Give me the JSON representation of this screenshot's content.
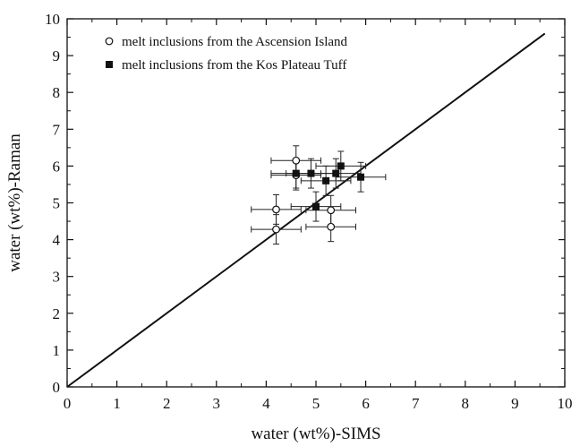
{
  "chart_data": {
    "type": "scatter",
    "title": "",
    "xlabel": "water (wt%)-SIMS",
    "ylabel": "water (wt%)-Raman",
    "xlim": [
      0,
      10
    ],
    "ylim": [
      0,
      10
    ],
    "xticks": [
      "0",
      "1",
      "2",
      "3",
      "4",
      "5",
      "6",
      "7",
      "8",
      "9",
      "10"
    ],
    "yticks": [
      "0",
      "1",
      "2",
      "3",
      "4",
      "5",
      "6",
      "7",
      "8",
      "9",
      "10"
    ],
    "grid": false,
    "legend_position": "top-left",
    "reference_line": {
      "x": [
        0,
        9.6
      ],
      "y": [
        0,
        9.6
      ]
    },
    "series": [
      {
        "name": "melt inclusions from the Ascension Island",
        "marker": "open-circle",
        "points": [
          {
            "x": 4.6,
            "y": 6.15,
            "xerr": 0.5,
            "yerr": 0.4
          },
          {
            "x": 4.6,
            "y": 5.75,
            "xerr": 0.5,
            "yerr": 0.4
          },
          {
            "x": 4.2,
            "y": 4.82,
            "xerr": 0.5,
            "yerr": 0.4
          },
          {
            "x": 4.2,
            "y": 4.28,
            "xerr": 0.5,
            "yerr": 0.4
          },
          {
            "x": 5.3,
            "y": 4.8,
            "xerr": 0.5,
            "yerr": 0.4
          },
          {
            "x": 5.3,
            "y": 4.35,
            "xerr": 0.5,
            "yerr": 0.4
          }
        ]
      },
      {
        "name": "melt inclusions from the Kos Plateau Tuff",
        "marker": "filled-square",
        "points": [
          {
            "x": 4.6,
            "y": 5.8,
            "xerr": 0.5,
            "yerr": 0.4
          },
          {
            "x": 4.9,
            "y": 5.8,
            "xerr": 0.5,
            "yerr": 0.4
          },
          {
            "x": 5.2,
            "y": 5.6,
            "xerr": 0.5,
            "yerr": 0.4
          },
          {
            "x": 5.4,
            "y": 5.8,
            "xerr": 0.5,
            "yerr": 0.4
          },
          {
            "x": 5.5,
            "y": 6.0,
            "xerr": 0.5,
            "yerr": 0.4
          },
          {
            "x": 5.9,
            "y": 5.7,
            "xerr": 0.5,
            "yerr": 0.4
          },
          {
            "x": 5.0,
            "y": 4.9,
            "xerr": 0.5,
            "yerr": 0.4
          }
        ]
      }
    ]
  }
}
